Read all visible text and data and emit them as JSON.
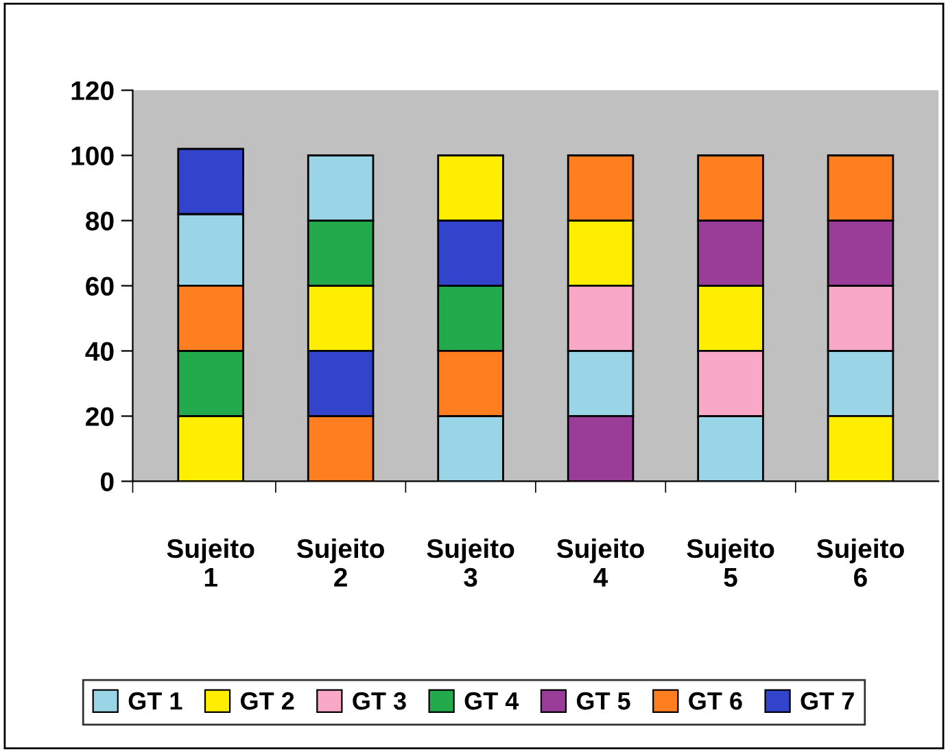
{
  "chart_data": {
    "type": "bar",
    "categories": [
      "Sujeito 1",
      "Sujeito 2",
      "Sujeito 3",
      "Sujeito 4",
      "Sujeito 5",
      "Sujeito 6"
    ],
    "series": [
      {
        "name": "GT 1",
        "color": "#99d5e6",
        "values": [
          22,
          20,
          20,
          20,
          20,
          20
        ],
        "base": [
          60,
          80,
          0,
          20,
          0,
          20
        ]
      },
      {
        "name": "GT 2",
        "color": "#ffee00",
        "values": [
          20,
          20,
          20,
          20,
          20,
          20
        ],
        "base": [
          0,
          40,
          80,
          60,
          40,
          0
        ]
      },
      {
        "name": "GT 3",
        "color": "#f9a8c8",
        "values": [
          null,
          null,
          null,
          20,
          20,
          20
        ],
        "base": [
          null,
          null,
          null,
          40,
          20,
          40
        ]
      },
      {
        "name": "GT 4",
        "color": "#22aa4c",
        "values": [
          20,
          20,
          20,
          null,
          null,
          null
        ],
        "base": [
          20,
          60,
          40,
          null,
          null,
          null
        ]
      },
      {
        "name": "GT 5",
        "color": "#993d99",
        "values": [
          null,
          null,
          null,
          20,
          20,
          20
        ],
        "base": [
          null,
          null,
          null,
          0,
          60,
          60
        ]
      },
      {
        "name": "GT 6",
        "color": "#ff7f20",
        "values": [
          20,
          20,
          20,
          20,
          20,
          20
        ],
        "base": [
          40,
          0,
          20,
          80,
          80,
          80
        ]
      },
      {
        "name": "GT 7",
        "color": "#3344cc",
        "values": [
          20,
          20,
          20,
          null,
          null,
          null
        ],
        "base": [
          82,
          20,
          60,
          null,
          null,
          null
        ]
      }
    ],
    "ylim": [
      0,
      120
    ],
    "yticks": [
      0,
      20,
      40,
      60,
      80,
      100,
      120
    ],
    "grid": false,
    "legend": "bottom"
  }
}
